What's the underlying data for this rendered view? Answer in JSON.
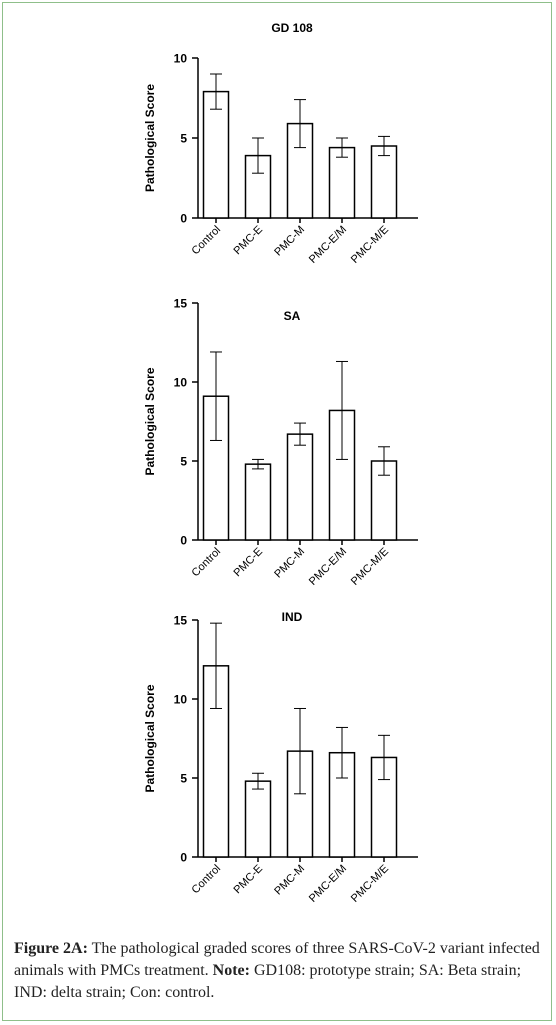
{
  "chart_data": [
    {
      "type": "bar",
      "title": "GD 108",
      "ylabel": "Pathological Score",
      "categories": [
        "Control",
        "PMC-E",
        "PMC-M",
        "PMC-E/M",
        "PMC-M/E"
      ],
      "values": [
        7.9,
        3.9,
        5.9,
        4.4,
        4.5
      ],
      "errors": [
        1.1,
        1.1,
        1.5,
        0.6,
        0.6
      ],
      "ylim": [
        0,
        10
      ],
      "yticks": [
        0,
        5,
        10
      ],
      "grid": false
    },
    {
      "type": "bar",
      "title": "SA",
      "ylabel": "Pathological Score",
      "categories": [
        "Control",
        "PMC-E",
        "PMC-M",
        "PMC-E/M",
        "PMC-M/E"
      ],
      "values": [
        9.1,
        4.8,
        6.7,
        8.2,
        5.0
      ],
      "errors": [
        2.8,
        0.3,
        0.7,
        3.1,
        0.9
      ],
      "ylim": [
        0,
        15
      ],
      "yticks": [
        0,
        5,
        10,
        15
      ],
      "grid": false
    },
    {
      "type": "bar",
      "title": "IND",
      "ylabel": "Pathological Score",
      "categories": [
        "Control",
        "PMC-E",
        "PMC-M",
        "PMC-E/M",
        "PMC-M/E"
      ],
      "values": [
        12.1,
        4.8,
        6.7,
        6.6,
        6.3
      ],
      "errors": [
        2.7,
        0.5,
        2.7,
        1.6,
        1.4
      ],
      "ylim": [
        0,
        15
      ],
      "yticks": [
        0,
        5,
        10,
        15
      ],
      "grid": false
    }
  ],
  "caption": {
    "label": "Figure 2A:",
    "text": " The pathological graded scores of three SARS-CoV-2 variant infected animals with PMCs treatment. ",
    "note_label": "Note:",
    "note_text": " GD108: prototype strain; SA: Beta strain; IND: delta strain; Con: control."
  }
}
